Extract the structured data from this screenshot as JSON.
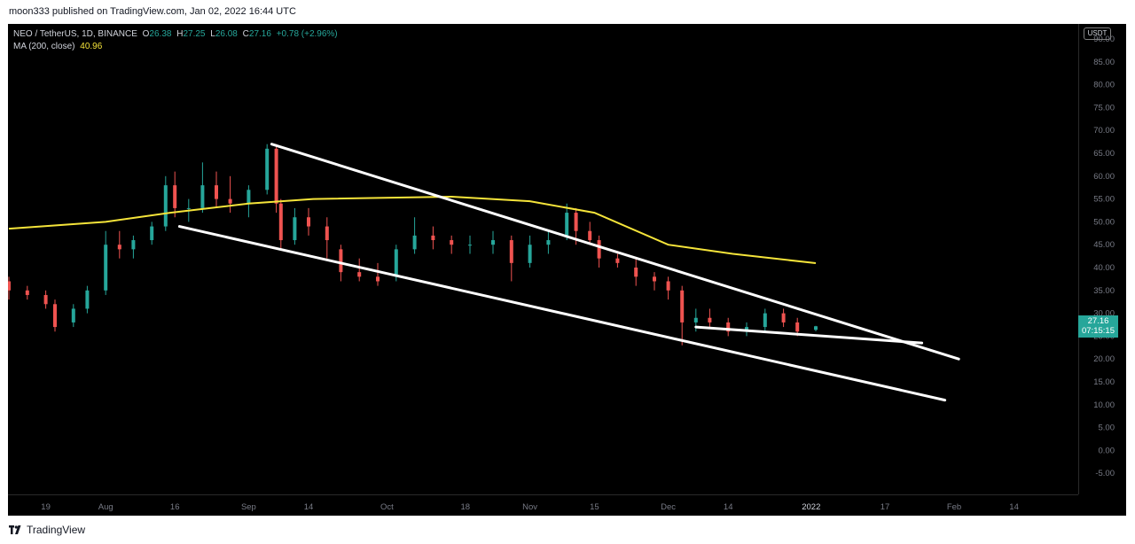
{
  "header": {
    "caption": "moon333 published on TradingView.com, Jan 02, 2022 16:44 UTC"
  },
  "legend": {
    "symbol": "NEO / TetherUS, 1D, BINANCE",
    "open_label": "O",
    "open": "26.38",
    "high_label": "H",
    "high": "27.25",
    "low_label": "L",
    "low": "26.08",
    "close_label": "C",
    "close": "27.16",
    "change": "+0.78 (+2.96%)",
    "ma_label": "MA (200, close)",
    "ma_value": "40.96"
  },
  "currency": "USDT",
  "last_price": {
    "price": "27.16",
    "countdown": "07:15:15"
  },
  "footer": {
    "brand": "TradingView",
    "logo_icon": "tradingview-logo-icon"
  },
  "colors": {
    "background": "#000000",
    "up": "#26a69a",
    "down": "#ef5350",
    "ma": "#f5e43a",
    "trendline": "#ffffff",
    "axis_text": "#787b86"
  },
  "chart_data": {
    "type": "candlestick",
    "title": "NEO / TetherUS, 1D, BINANCE",
    "ylim": [
      -7,
      92
    ],
    "y_ticks": [
      "90.00",
      "85.00",
      "80.00",
      "75.00",
      "70.00",
      "65.00",
      "60.00",
      "55.00",
      "50.00",
      "45.00",
      "40.00",
      "35.00",
      "30.00",
      "25.00",
      "20.00",
      "15.00",
      "10.00",
      "5.00",
      "0.00",
      "-5.00"
    ],
    "x_ticks": [
      "19",
      "Aug",
      "16",
      "Sep",
      "14",
      "Oct",
      "18",
      "Nov",
      "15",
      "Dec",
      "14",
      "2022",
      "17",
      "Feb",
      "14"
    ],
    "grid": false,
    "series": [
      {
        "name": "MA (200, close)",
        "points": [
          [
            "Jul 11",
            48.5
          ],
          [
            "Aug 1",
            50
          ],
          [
            "Aug 15",
            52
          ],
          [
            "Sep 1",
            54
          ],
          [
            "Sep 15",
            55
          ],
          [
            "Oct 15",
            55.5
          ],
          [
            "Nov 1",
            54.5
          ],
          [
            "Nov 15",
            52
          ],
          [
            "Dec 1",
            45
          ],
          [
            "Dec 15",
            43
          ],
          [
            "Jan 2",
            40.96
          ]
        ]
      }
    ],
    "candles": [
      [
        "Jul 11",
        37,
        38,
        33,
        35
      ],
      [
        "Jul 15",
        35,
        36,
        33,
        34
      ],
      [
        "Jul 19",
        34,
        35,
        31,
        32
      ],
      [
        "Jul 21",
        32,
        33,
        26,
        27
      ],
      [
        "Jul 25",
        28,
        32,
        27,
        31
      ],
      [
        "Jul 28",
        31,
        36,
        30,
        35
      ],
      [
        "Aug 1",
        35,
        48,
        34,
        45
      ],
      [
        "Aug 4",
        45,
        48,
        42,
        44
      ],
      [
        "Aug 7",
        44,
        47,
        42,
        46
      ],
      [
        "Aug 11",
        46,
        50,
        45,
        49
      ],
      [
        "Aug 14",
        49,
        60,
        48,
        58
      ],
      [
        "Aug 16",
        58,
        61,
        51,
        53
      ],
      [
        "Aug 19",
        53,
        55,
        50,
        53
      ],
      [
        "Aug 22",
        53,
        63,
        52,
        58
      ],
      [
        "Aug 25",
        58,
        61,
        53,
        55
      ],
      [
        "Aug 28",
        55,
        60,
        52,
        54
      ],
      [
        "Sep 1",
        54,
        58,
        51,
        57
      ],
      [
        "Sep 5",
        57,
        67,
        56,
        66
      ],
      [
        "Sep 7",
        66,
        67,
        52,
        54
      ],
      [
        "Sep 8",
        54,
        55,
        44,
        46
      ],
      [
        "Sep 11",
        46,
        53,
        45,
        51
      ],
      [
        "Sep 14",
        51,
        53,
        47,
        49
      ],
      [
        "Sep 18",
        49,
        51,
        42,
        46
      ],
      [
        "Sep 21",
        44,
        45,
        37,
        39
      ],
      [
        "Sep 25",
        39,
        42,
        37,
        38
      ],
      [
        "Sep 29",
        38,
        41,
        36,
        37
      ],
      [
        "Oct 3",
        38,
        45,
        37,
        44
      ],
      [
        "Oct 7",
        44,
        51,
        43,
        47
      ],
      [
        "Oct 11",
        47,
        49,
        44,
        46
      ],
      [
        "Oct 15",
        46,
        47,
        43,
        45
      ],
      [
        "Oct 19",
        45,
        47,
        43,
        45
      ],
      [
        "Oct 24",
        45,
        48,
        43,
        46
      ],
      [
        "Oct 28",
        46,
        47,
        37,
        41
      ],
      [
        "Nov 1",
        41,
        47,
        40,
        45
      ],
      [
        "Nov 5",
        45,
        48,
        43,
        46
      ],
      [
        "Nov 9",
        47,
        54,
        46,
        52
      ],
      [
        "Nov 11",
        52,
        53,
        45,
        48
      ],
      [
        "Nov 14",
        48,
        50,
        45,
        46
      ],
      [
        "Nov 16",
        46,
        47,
        40,
        42
      ],
      [
        "Nov 20",
        42,
        43,
        40,
        41
      ],
      [
        "Nov 24",
        40,
        42,
        36,
        38
      ],
      [
        "Nov 28",
        38,
        39,
        35,
        37
      ],
      [
        "Dec 1",
        37,
        38,
        33,
        35
      ],
      [
        "Dec 4",
        35,
        36,
        23,
        28
      ],
      [
        "Dec 7",
        28,
        31,
        26,
        29
      ],
      [
        "Dec 10",
        29,
        31,
        27,
        28
      ],
      [
        "Dec 14",
        28,
        29,
        25,
        26
      ],
      [
        "Dec 18",
        26,
        28,
        25,
        27
      ],
      [
        "Dec 22",
        27,
        31,
        26,
        30
      ],
      [
        "Dec 26",
        30,
        31,
        27,
        28
      ],
      [
        "Dec 29",
        28,
        29,
        25,
        26
      ],
      [
        "Jan 2",
        26.38,
        27.25,
        26.08,
        27.16
      ]
    ],
    "trendlines": [
      {
        "name": "upper channel line",
        "from": [
          "Sep 6",
          67
        ],
        "to": [
          "Feb 2",
          20
        ]
      },
      {
        "name": "lower channel line",
        "from": [
          "Aug 17",
          49
        ],
        "to": [
          "Jan 30",
          11
        ]
      },
      {
        "name": "pennant support line",
        "from": [
          "Dec 7",
          27
        ],
        "to": [
          "Jan 25",
          23.5
        ]
      }
    ]
  }
}
